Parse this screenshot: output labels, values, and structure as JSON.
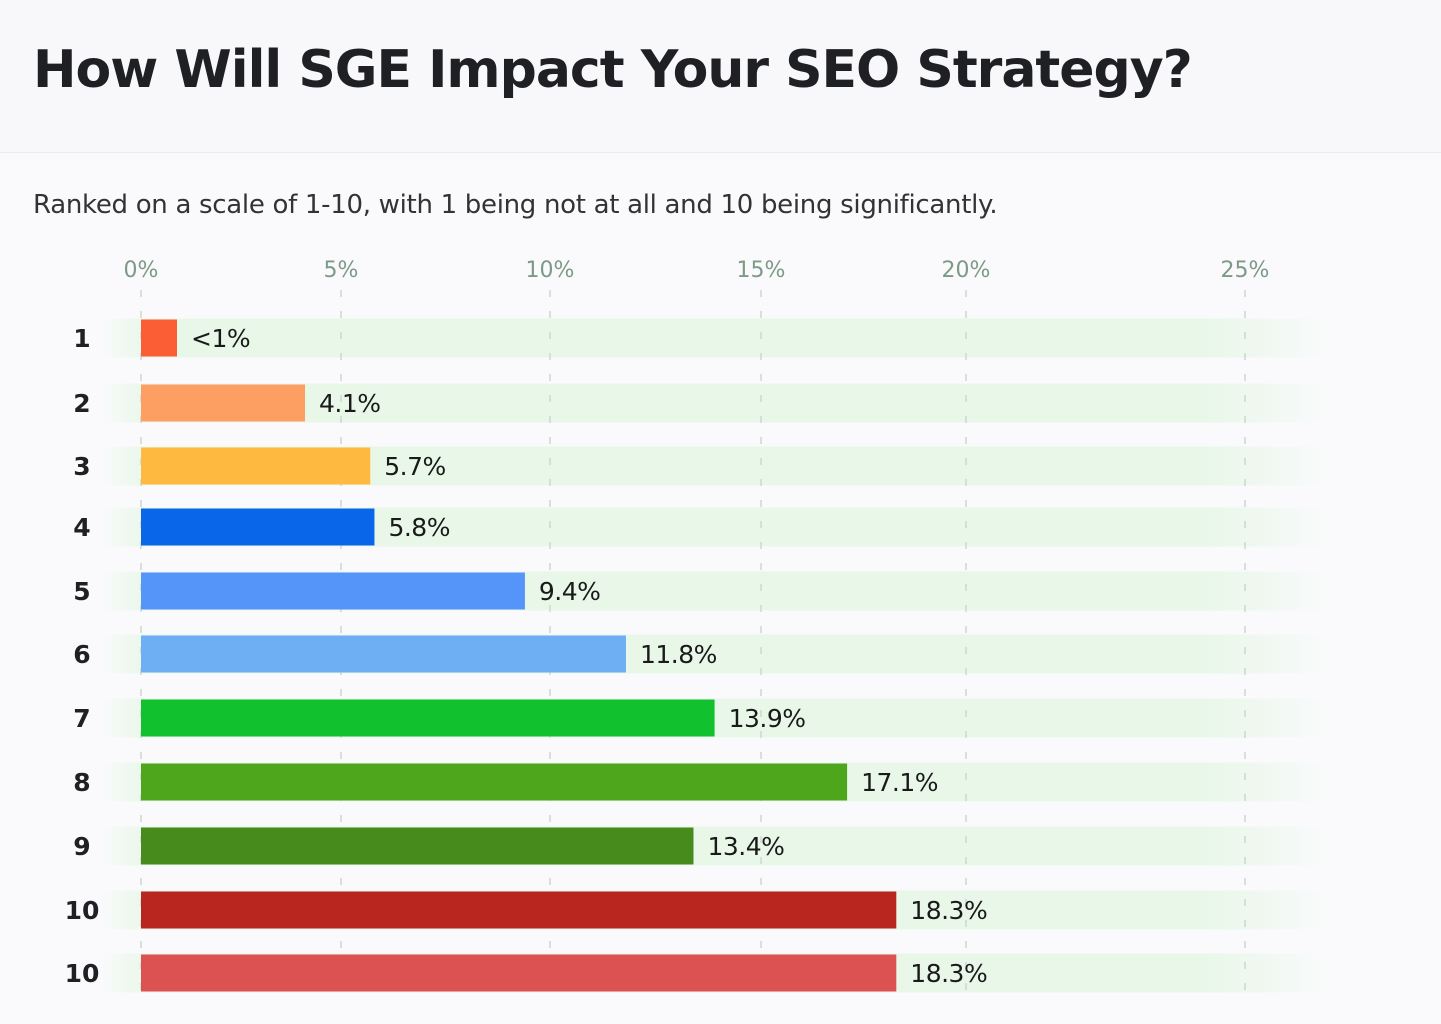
{
  "title": "How Will SGE Impact Your SEO Strategy?",
  "subtitle": "Ranked on a scale of 1-10, with 1 being not at all and 10 being significantly.",
  "chart_data": {
    "type": "bar",
    "orientation": "horizontal",
    "title": "How Will SGE Impact Your SEO Strategy?",
    "subtitle": "Ranked on a scale of 1-10, with 1 being not at all and 10 being significantly.",
    "categories": [
      "1",
      "2",
      "3",
      "4",
      "5",
      "6",
      "7",
      "8",
      "9",
      "10",
      "10"
    ],
    "values": [
      0.9,
      4.1,
      5.7,
      5.8,
      9.4,
      11.8,
      13.9,
      17.1,
      13.4,
      18.3,
      18.3
    ],
    "labels": [
      "<1%",
      "4.1%",
      "5.7%",
      "5.8%",
      "9.4%",
      "11.8%",
      "13.9%",
      "17.1%",
      "13.4%",
      "18.3%",
      "18.3%"
    ],
    "colors": [
      "#fb5e35",
      "#fd9f63",
      "#feb940",
      "#0a66e8",
      "#5595f9",
      "#6eaef2",
      "#12c12e",
      "#4ea61c",
      "#468b1c",
      "#b8261f",
      "#dc5151"
    ],
    "xticks": [
      "0%",
      "5%",
      "10%",
      "15%",
      "20%",
      "25%"
    ],
    "xtick_values": [
      0,
      5,
      10,
      15,
      20,
      25
    ],
    "xlim": [
      0,
      25
    ],
    "xlabel": "",
    "ylabel": "",
    "grid": "vertical dashed",
    "tick_color": "#7d9a86",
    "track_color": "#e6f7e6"
  }
}
